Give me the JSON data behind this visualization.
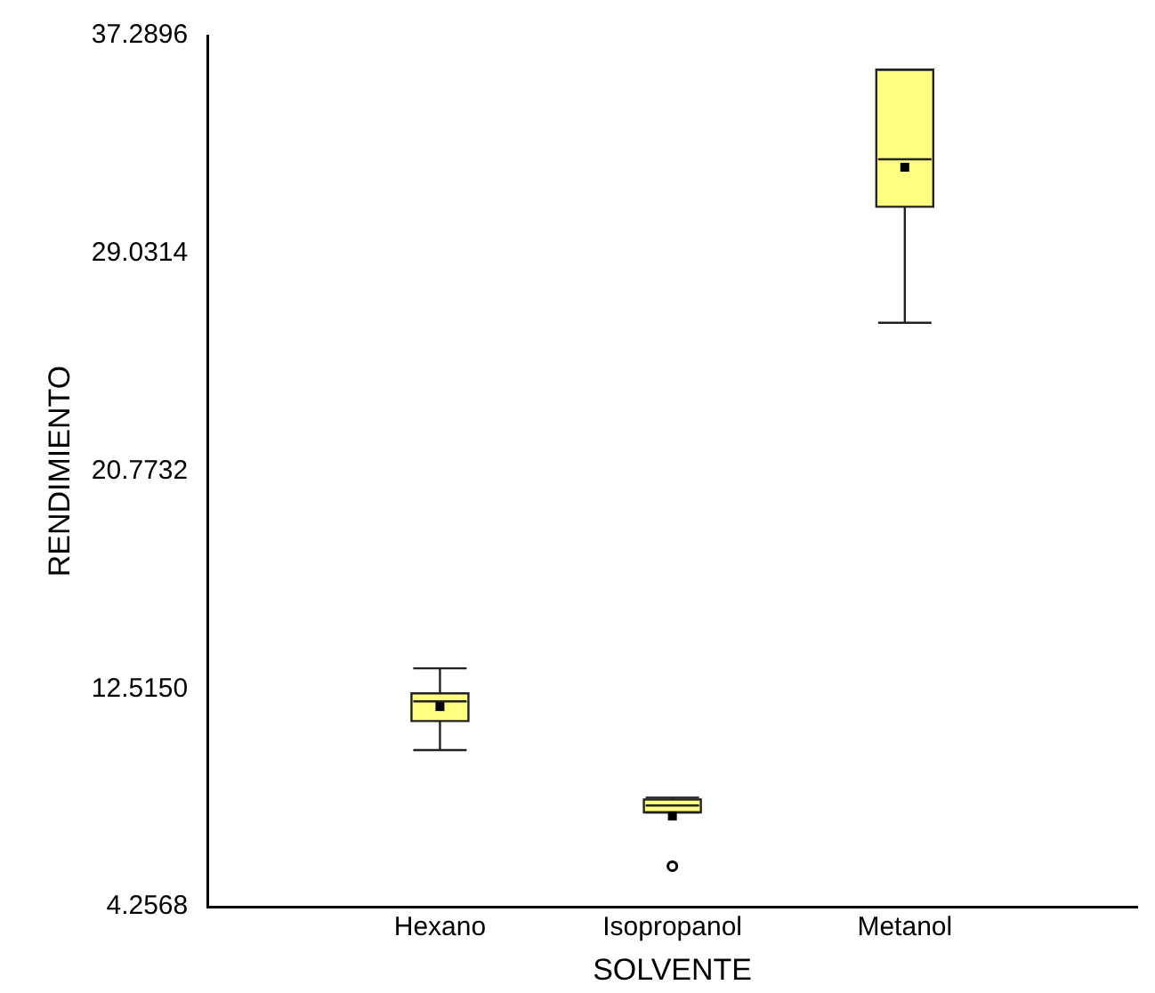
{
  "chart_data": {
    "type": "box",
    "xlabel": "SOLVENTE",
    "ylabel": "RENDIMIENTO",
    "categories": [
      "Hexano",
      "Isopropanol",
      "Metanol"
    ],
    "color": "#ffff80",
    "boxes": [
      {
        "low": 10.2,
        "q1": 11.3,
        "median": 12.05,
        "q3": 12.35,
        "high": 13.3,
        "mean": 11.85
      },
      {
        "low": 7.84,
        "q1": 7.84,
        "median": 8.1,
        "q3": 8.33,
        "high": 8.4,
        "mean": 7.7,
        "outliers": [
          5.8
        ]
      },
      {
        "low": 26.4,
        "q1": 30.8,
        "median": 32.6,
        "q3": 36.0,
        "high": 36.0,
        "mean": 32.3
      }
    ],
    "ylim": [
      4.2568,
      37.2896
    ],
    "yticks": [
      4.2568,
      {
        "value": 12.515,
        "label": "12.5150"
      },
      20.7732,
      29.0314,
      37.2896
    ],
    "grid": false,
    "legend": false
  }
}
